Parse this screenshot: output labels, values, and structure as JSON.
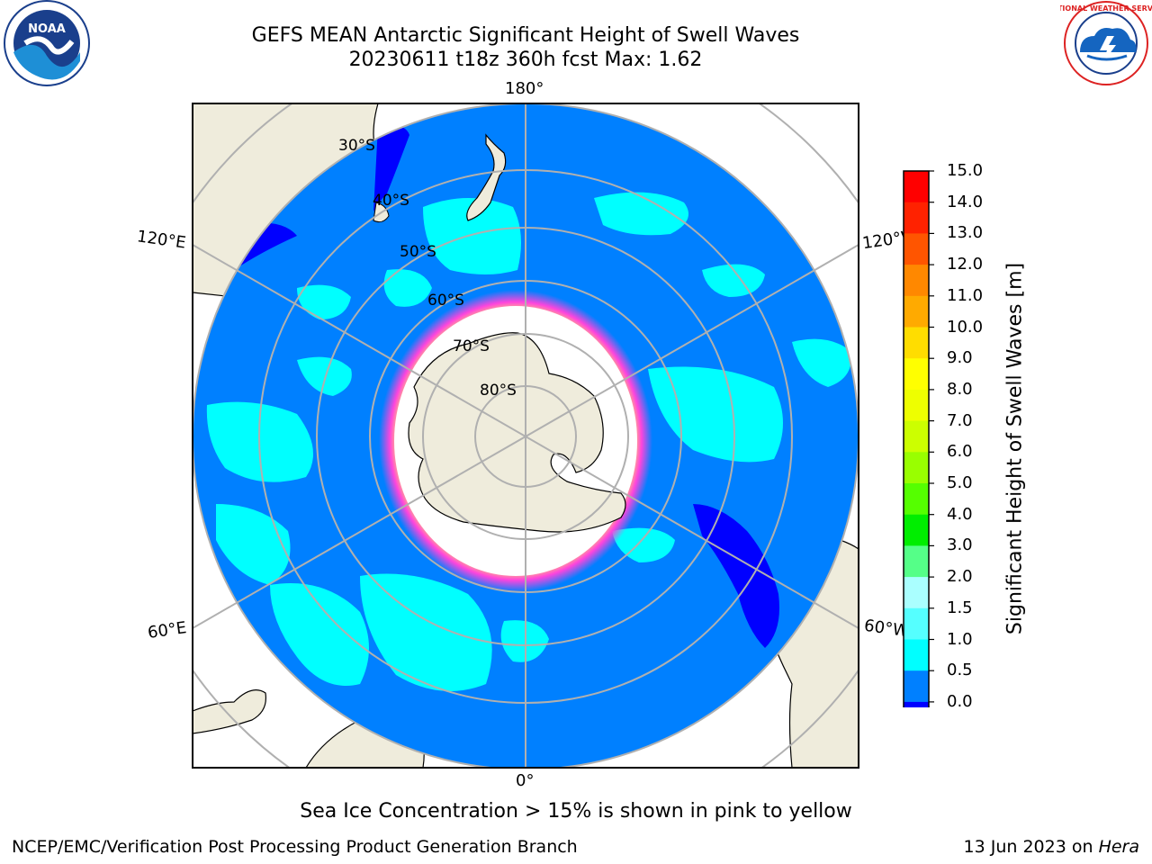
{
  "title": {
    "line1": "GEFS MEAN Antarctic Significant Height of Swell Waves",
    "line2": "20230611 t18z 360h fcst   Max: 1.62"
  },
  "map": {
    "projection": "South polar stereographic",
    "longitude_labels": [
      "180°",
      "120°E",
      "120°W",
      "60°E",
      "60°W",
      "0°"
    ],
    "latitude_labels": [
      "30°S",
      "40°S",
      "50°S",
      "60°S",
      "70°S",
      "80°S"
    ],
    "colors": {
      "land": "#efecdc",
      "ocean_0.5_1.0": "#0080ff",
      "ocean_1.0_1.5": "#00ffff",
      "ocean_0.0_0.5": "#0000ff",
      "sea_ice_edge": "#ff44dd",
      "sea_ice_inner": "#ffb030",
      "no_data": "#ffffff"
    }
  },
  "colorbar": {
    "label": "Significant Height of Swell Waves [m]",
    "ticks": [
      "15.0",
      "14.0",
      "13.0",
      "12.0",
      "11.0",
      "10.0",
      "9.0",
      "8.0",
      "7.0",
      "6.0",
      "5.0",
      "4.0",
      "3.0",
      "2.0",
      "1.5",
      "1.0",
      "0.5",
      "0.0"
    ],
    "colors_top_to_bottom": [
      "#ff0000",
      "#ff2200",
      "#ff5500",
      "#ff8800",
      "#ffaa00",
      "#ffdd00",
      "#ffff00",
      "#eeff00",
      "#ccff00",
      "#99ff00",
      "#55ff00",
      "#00ee00",
      "#55ff88",
      "#aaffff",
      "#55ffff",
      "#00ffff",
      "#0080ff",
      "#0000ff"
    ]
  },
  "caption": "Sea Ice Concentration > 15% is shown in pink to yellow",
  "footer": {
    "left": "NCEP/EMC/Verification Post Processing Product Generation Branch",
    "right_prefix": "13 Jun 2023 on ",
    "right_machine": "Hera"
  },
  "logos": {
    "noaa_text": "NOAA",
    "nws_text": "NATIONAL WEATHER SERVICE"
  }
}
